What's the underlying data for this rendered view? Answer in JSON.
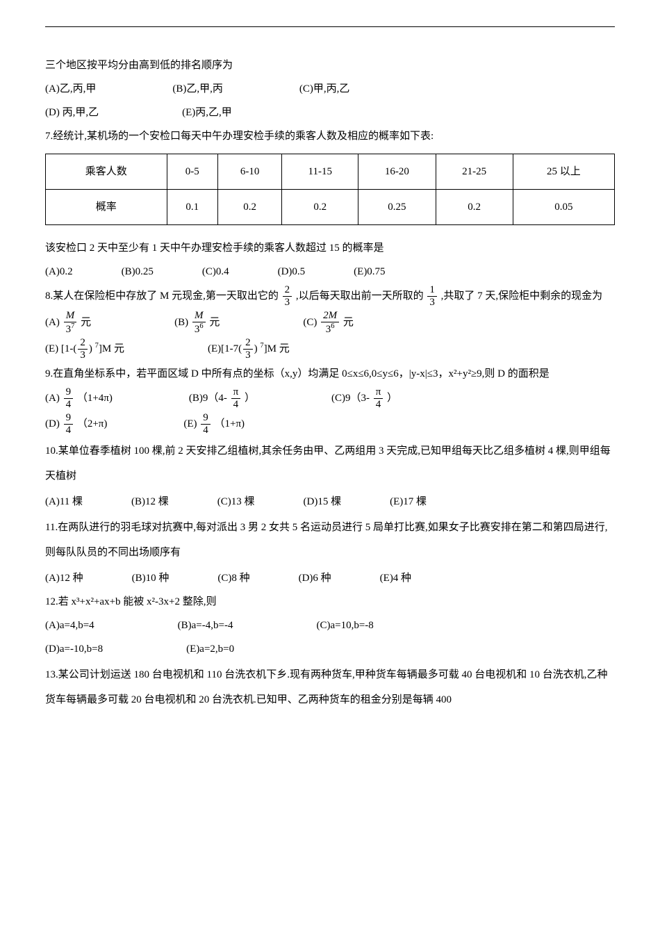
{
  "q6": {
    "line1": "三个地区按平均分由高到低的排名顺序为",
    "opts1": [
      "(A)乙,丙,甲",
      "(B)乙,甲,丙",
      "(C)甲,丙,乙"
    ],
    "opts2": [
      "(D) 丙,甲,乙",
      "(E)丙,乙,甲"
    ]
  },
  "q7": {
    "stem": "7.经统计,某机场的一个安检口每天中午办理安检手续的乘客人数及相应的概率如下表:",
    "table": {
      "headers": [
        "乘客人数",
        "0-5",
        "6-10",
        "11-15",
        "16-20",
        "21-25",
        "25 以上"
      ],
      "row2": [
        "概率",
        "0.1",
        "0.2",
        "0.2",
        "0.25",
        "0.2",
        "0.05"
      ]
    },
    "line2": "该安检口 2 天中至少有 1 天中午办理安检手续的乘客人数超过 15 的概率是",
    "opts": [
      "(A)0.2",
      "(B)0.25",
      "(C)0.4",
      "(D)0.5",
      "(E)0.75"
    ]
  },
  "q8": {
    "pre": "8.某人在保险柜中存放了 M 元现金,第一天取出它的",
    "mid": ",以后每天取出前一天所取的",
    "post": ",共取了 7 天,保险柜中剩余的现金为",
    "f1": {
      "num": "2",
      "den": "3"
    },
    "f2": {
      "num": "1",
      "den": "3"
    },
    "optA": {
      "label": "(A) ",
      "num": "M",
      "den_base": "3",
      "den_sup": "7",
      "suffix": " 元"
    },
    "optB": {
      "label": "(B) ",
      "num": "M",
      "den_base": "3",
      "den_sup": "6",
      "suffix": "元"
    },
    "optC": {
      "label": "(C) ",
      "num": "2M",
      "den_base": "3",
      "den_sup": "6",
      "suffix": "元"
    },
    "optD": {
      "label": "(E) [1-(",
      "inner_num": "2",
      "inner_den": "3",
      "exp": "7",
      "suffix": "]M 元"
    },
    "optE": {
      "label": "(E)[1-7(",
      "inner_num": "2",
      "inner_den": "3",
      "exp": "7",
      "suffix": "]M 元"
    }
  },
  "q9": {
    "stem": "9.在直角坐标系中，若平面区域 D 中所有点的坐标（x,y）均满足 0≤x≤6,0≤y≤6，|y-x|≤3，x²+y²≥9,则 D 的面积是",
    "optA": {
      "label": "(A) ",
      "num": "9",
      "den": "4",
      "tail": "（1+4π)"
    },
    "optB": {
      "label": "(B)9（4-",
      "num": "π",
      "den": "4",
      "tail": "）"
    },
    "optC": {
      "label": "(C)9（3-",
      "num": "π",
      "den": "4",
      "tail": "）"
    },
    "optD": {
      "label": "(D) ",
      "num": "9",
      "den": "4",
      "tail": "（2+π)"
    },
    "optE": {
      "label": "(E) ",
      "num": "9",
      "den": "4",
      "tail": "（1+π)"
    }
  },
  "q10": {
    "stem": "10.某单位春季植树 100 棵,前 2 天安排乙组植树,其余任务由甲、乙两组用 3 天完成,已知甲组每天比乙组多植树 4 棵,则甲组每天植树",
    "opts": [
      "(A)11 棵",
      "(B)12 棵",
      "(C)13 棵",
      "(D)15 棵",
      "(E)17 棵"
    ]
  },
  "q11": {
    "stem": "11.在两队进行的羽毛球对抗赛中,每对派出 3 男 2 女共 5 名运动员进行 5 局单打比赛,如果女子比赛安排在第二和第四局进行,则每队队员的不同出场顺序有",
    "opts": [
      "(A)12 种",
      "(B)10 种",
      "(C)8 种",
      "(D)6 种",
      "(E)4 种"
    ]
  },
  "q12": {
    "stem": "12.若 x³+x²+ax+b 能被 x²-3x+2 整除,则",
    "opts1": [
      "(A)a=4,b=4",
      "(B)a=-4,b=-4",
      "(C)a=10,b=-8"
    ],
    "opts2": [
      "(D)a=-10,b=8",
      "(E)a=2,b=0"
    ]
  },
  "q13": {
    "stem": "13.某公司计划运送 180 台电视机和 110 台洗衣机下乡.现有两种货车,甲种货车每辆最多可载 40 台电视机和 10 台洗衣机,乙种货车每辆最多可载 20 台电视机和 20 台洗衣机.已知甲、乙两种货车的租金分别是每辆 400"
  }
}
